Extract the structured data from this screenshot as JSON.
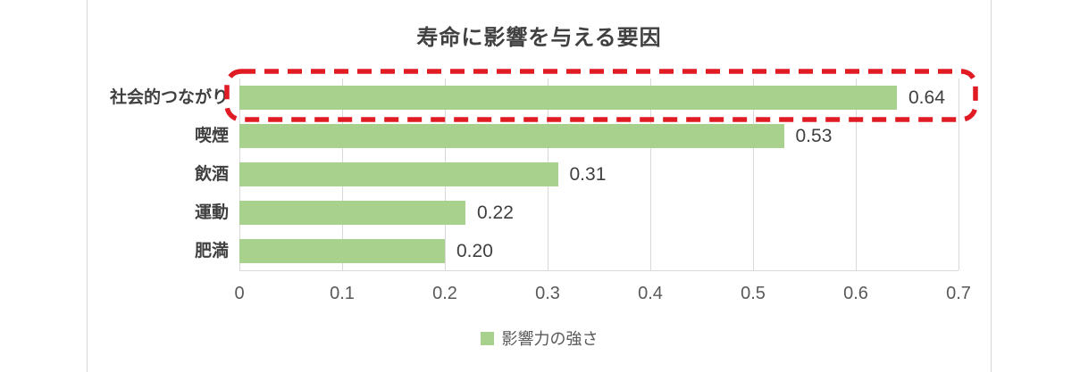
{
  "chart_data": {
    "type": "bar",
    "orientation": "horizontal",
    "title": "寿命に影響を与える要因",
    "categories": [
      "社会的つながり",
      "喫煙",
      "飲酒",
      "運動",
      "肥満"
    ],
    "values": [
      0.64,
      0.53,
      0.31,
      0.22,
      0.2
    ],
    "value_labels": [
      "0.64",
      "0.53",
      "0.31",
      "0.22",
      "0.20"
    ],
    "series_name": "影響力の強さ",
    "xlabel": "",
    "ylabel": "",
    "xlim": [
      0,
      0.7
    ],
    "x_ticks": [
      0,
      0.1,
      0.2,
      0.3,
      0.4,
      0.5,
      0.6,
      0.7
    ],
    "x_tick_labels": [
      "0",
      "0.1",
      "0.2",
      "0.3",
      "0.4",
      "0.5",
      "0.6",
      "0.7"
    ],
    "grid": "vertical",
    "legend_position": "bottom-center",
    "bar_color": "#a9d18e",
    "grid_color": "#d9d9d9",
    "title_color": "#404040",
    "label_color": "#404040",
    "tick_color": "#595959",
    "annotation": {
      "type": "dashed-highlight-box",
      "highlighted_category": "社会的つながり",
      "highlighted_index": 0,
      "color": "#e01b23"
    }
  }
}
